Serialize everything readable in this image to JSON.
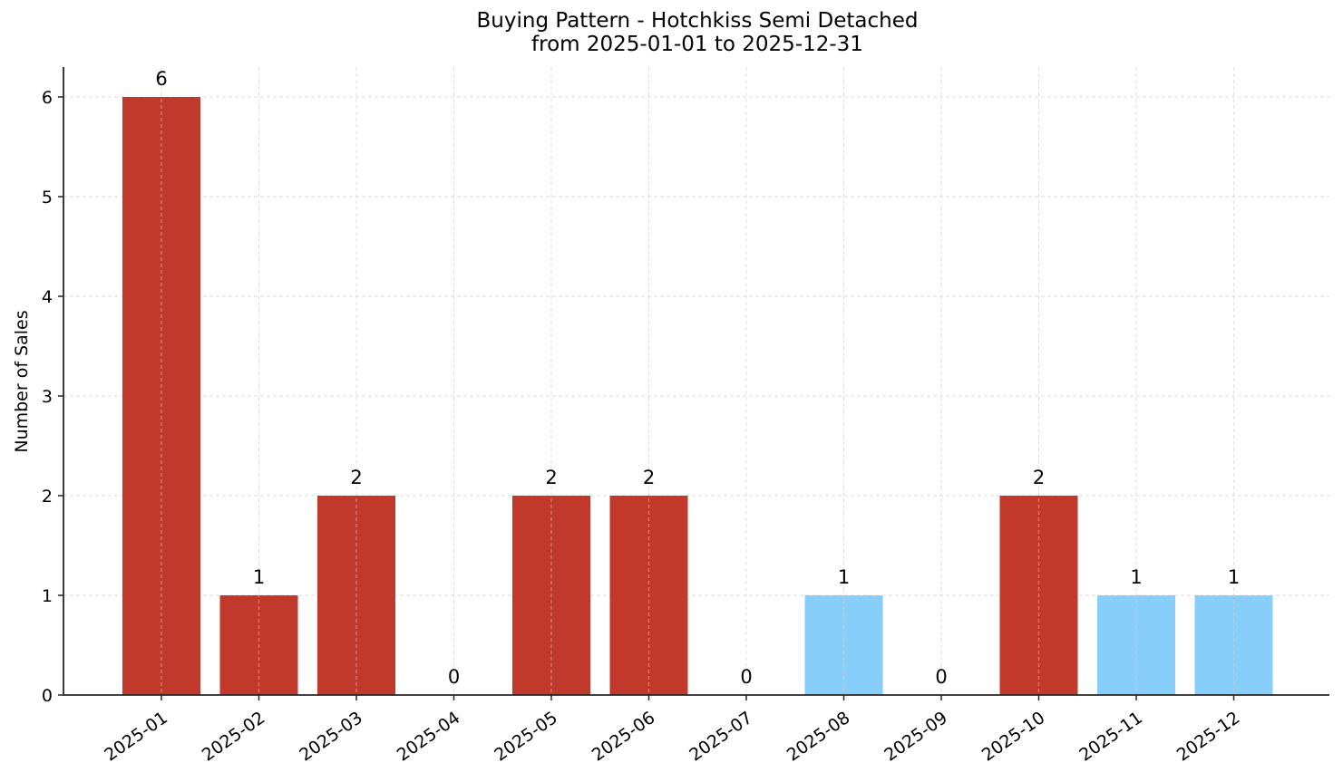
{
  "chart_data": {
    "type": "bar",
    "title": "Buying Pattern - Hotchkiss Semi Detached",
    "subtitle": "from 2025-01-01 to 2025-12-31",
    "xlabel": "",
    "ylabel": "Number of Sales",
    "categories": [
      "2025-01",
      "2025-02",
      "2025-03",
      "2025-04",
      "2025-05",
      "2025-06",
      "2025-07",
      "2025-08",
      "2025-09",
      "2025-10",
      "2025-11",
      "2025-12"
    ],
    "values": [
      6,
      1,
      2,
      0,
      2,
      2,
      0,
      1,
      0,
      2,
      1,
      1
    ],
    "bar_colors": [
      "#c0392b",
      "#c0392b",
      "#c0392b",
      "#c0392b",
      "#c0392b",
      "#c0392b",
      "#c0392b",
      "#87cefa",
      "#c0392b",
      "#c0392b",
      "#87cefa",
      "#87cefa"
    ],
    "data_labels": [
      "6",
      "1",
      "2",
      "0",
      "2",
      "2",
      "0",
      "1",
      "0",
      "2",
      "1",
      "1"
    ],
    "ylim": [
      0,
      6.3
    ],
    "yticks": [
      0,
      1,
      2,
      3,
      4,
      5,
      6
    ],
    "grid": true,
    "legend": null
  },
  "colors": {
    "high": "#c0392b",
    "low": "#87cefa",
    "grid": "#d0d0d0",
    "axis": "#262626"
  }
}
